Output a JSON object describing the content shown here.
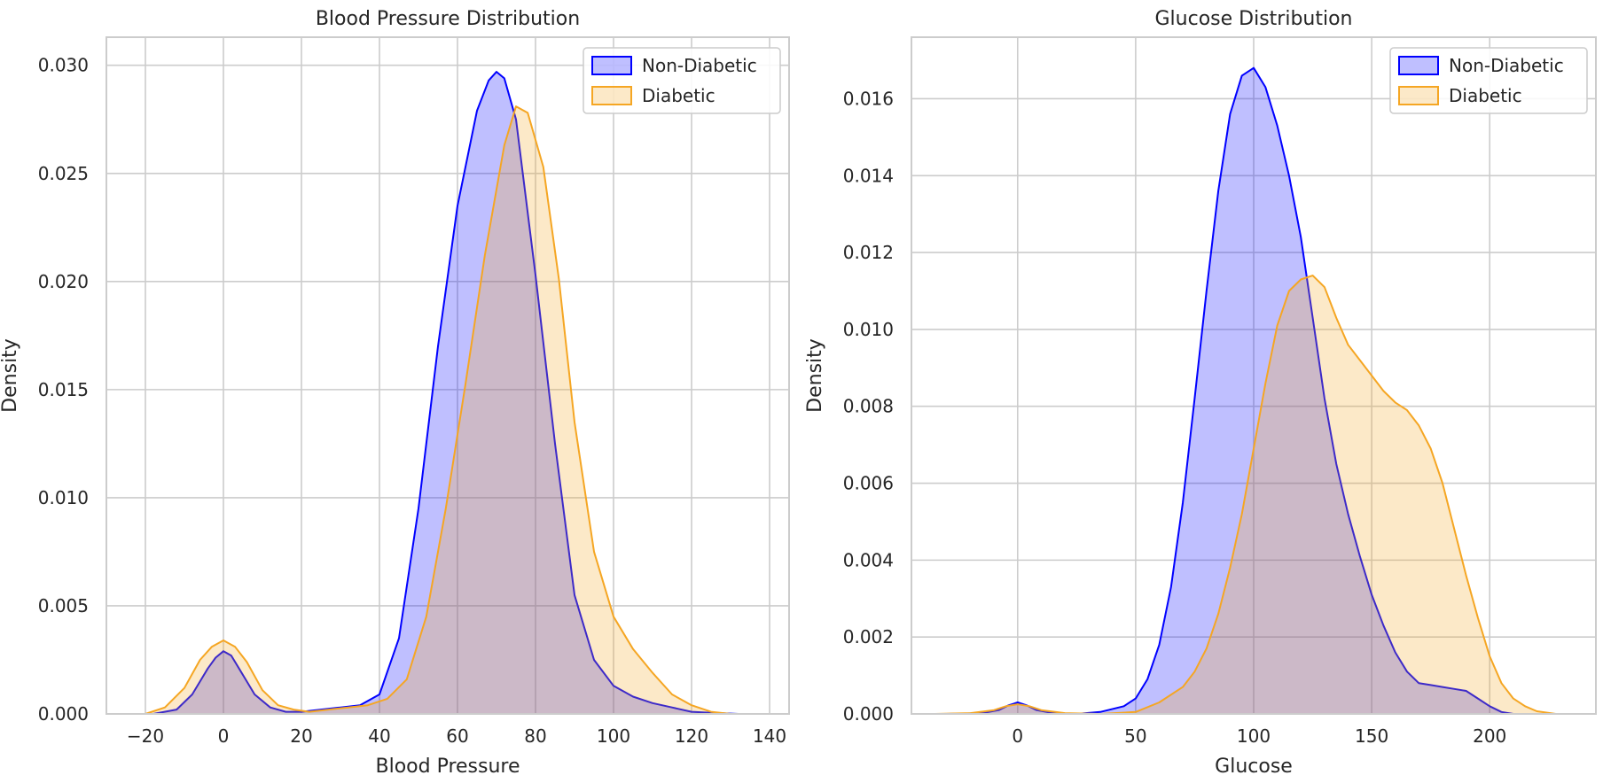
{
  "chart_data": [
    {
      "type": "area",
      "title": "Blood Pressure Distribution",
      "xlabel": "Blood Pressure",
      "ylabel": "Density",
      "xlim": [
        -30,
        145
      ],
      "ylim": [
        0,
        0.0313
      ],
      "xticks": [
        -20,
        0,
        20,
        40,
        60,
        80,
        100,
        120,
        140
      ],
      "xtick_labels": [
        "−20",
        "0",
        "20",
        "40",
        "60",
        "80",
        "100",
        "120",
        "140"
      ],
      "yticks": [
        0,
        0.005,
        0.01,
        0.015,
        0.02,
        0.025,
        0.03
      ],
      "ytick_labels": [
        "0.000",
        "0.005",
        "0.010",
        "0.015",
        "0.020",
        "0.025",
        "0.030"
      ],
      "grid": true,
      "legend_position": "top-right",
      "series": [
        {
          "name": "Non-Diabetic",
          "color": "#0000ff",
          "x": [
            -18,
            -12,
            -8,
            -4,
            -2,
            0,
            2,
            4,
            8,
            12,
            16,
            20,
            25,
            30,
            35,
            40,
            45,
            50,
            55,
            60,
            65,
            68,
            70,
            72,
            75,
            80,
            85,
            90,
            95,
            100,
            105,
            110,
            115,
            120,
            125,
            132
          ],
          "y": [
            0,
            0.0002,
            0.0009,
            0.0021,
            0.0026,
            0.0029,
            0.0027,
            0.0021,
            0.0009,
            0.0003,
            0.0001,
            0.0001,
            0.0002,
            0.0003,
            0.0004,
            0.0009,
            0.0035,
            0.0095,
            0.017,
            0.0235,
            0.0279,
            0.0293,
            0.0297,
            0.0294,
            0.0275,
            0.0203,
            0.0125,
            0.0055,
            0.0025,
            0.0013,
            0.0008,
            0.0005,
            0.0003,
            0.0001,
            5e-05,
            0
          ]
        },
        {
          "name": "Diabetic",
          "color": "#f5a623",
          "x": [
            -20,
            -15,
            -10,
            -6,
            -3,
            0,
            3,
            6,
            10,
            14,
            18,
            22,
            27,
            32,
            37,
            42,
            47,
            52,
            57,
            62,
            67,
            72,
            75,
            78,
            82,
            86,
            90,
            95,
            100,
            105,
            110,
            115,
            120,
            125,
            130
          ],
          "y": [
            0,
            0.0003,
            0.0012,
            0.0025,
            0.0031,
            0.0034,
            0.0031,
            0.0024,
            0.0011,
            0.0004,
            0.0002,
            0.0001,
            0.0002,
            0.0003,
            0.0004,
            0.0007,
            0.0016,
            0.0045,
            0.0095,
            0.0152,
            0.0212,
            0.0263,
            0.0281,
            0.0278,
            0.0253,
            0.0201,
            0.0135,
            0.0075,
            0.0045,
            0.003,
            0.0019,
            0.0009,
            0.0004,
            0.0001,
            0
          ]
        }
      ]
    },
    {
      "type": "area",
      "title": "Glucose Distribution",
      "xlabel": "Glucose",
      "ylabel": "Density",
      "xlim": [
        -45,
        245
      ],
      "ylim": [
        0,
        0.0176
      ],
      "xticks": [
        0,
        50,
        100,
        150,
        200
      ],
      "xtick_labels": [
        "0",
        "50",
        "100",
        "150",
        "200"
      ],
      "yticks": [
        0,
        0.002,
        0.004,
        0.006,
        0.008,
        0.01,
        0.012,
        0.014,
        0.016
      ],
      "ytick_labels": [
        "0.000",
        "0.002",
        "0.004",
        "0.006",
        "0.008",
        "0.010",
        "0.012",
        "0.014",
        "0.016"
      ],
      "grid": true,
      "legend_position": "top-right",
      "series": [
        {
          "name": "Non-Diabetic",
          "color": "#0000ff",
          "x": [
            -30,
            -15,
            -8,
            -4,
            0,
            4,
            8,
            15,
            25,
            35,
            45,
            50,
            55,
            60,
            65,
            70,
            75,
            80,
            85,
            90,
            95,
            100,
            105,
            110,
            115,
            120,
            125,
            130,
            135,
            140,
            145,
            150,
            155,
            160,
            165,
            170,
            175,
            180,
            185,
            190,
            195,
            200,
            205,
            210
          ],
          "y": [
            0,
            2e-05,
            0.0001,
            0.00022,
            0.0003,
            0.00022,
            0.0001,
            2e-05,
            0,
            5e-05,
            0.0002,
            0.0004,
            0.0009,
            0.0018,
            0.0033,
            0.0055,
            0.0082,
            0.011,
            0.0136,
            0.0156,
            0.0166,
            0.0168,
            0.0163,
            0.0153,
            0.014,
            0.0124,
            0.0103,
            0.0082,
            0.0065,
            0.0052,
            0.0041,
            0.0031,
            0.0023,
            0.0016,
            0.0011,
            0.0008,
            0.00075,
            0.0007,
            0.00065,
            0.0006,
            0.0004,
            0.0002,
            5e-05,
            0
          ]
        },
        {
          "name": "Diabetic",
          "color": "#f5a623",
          "x": [
            -35,
            -20,
            -10,
            -5,
            0,
            5,
            10,
            20,
            35,
            50,
            60,
            70,
            75,
            80,
            85,
            90,
            95,
            100,
            105,
            110,
            115,
            120,
            125,
            130,
            135,
            140,
            145,
            150,
            155,
            160,
            165,
            170,
            175,
            180,
            185,
            190,
            195,
            200,
            205,
            210,
            215,
            220,
            228
          ],
          "y": [
            0,
            2e-05,
            0.0001,
            0.0002,
            0.00025,
            0.0002,
            0.0001,
            2e-05,
            0,
            5e-05,
            0.0003,
            0.0007,
            0.0011,
            0.0017,
            0.0026,
            0.0038,
            0.0052,
            0.0069,
            0.0086,
            0.0101,
            0.011,
            0.0113,
            0.0114,
            0.0111,
            0.0103,
            0.0096,
            0.0092,
            0.0088,
            0.0084,
            0.0081,
            0.0079,
            0.0075,
            0.0069,
            0.006,
            0.0048,
            0.0036,
            0.0025,
            0.0015,
            0.0008,
            0.0004,
            0.0002,
            7e-05,
            0
          ]
        }
      ]
    }
  ]
}
